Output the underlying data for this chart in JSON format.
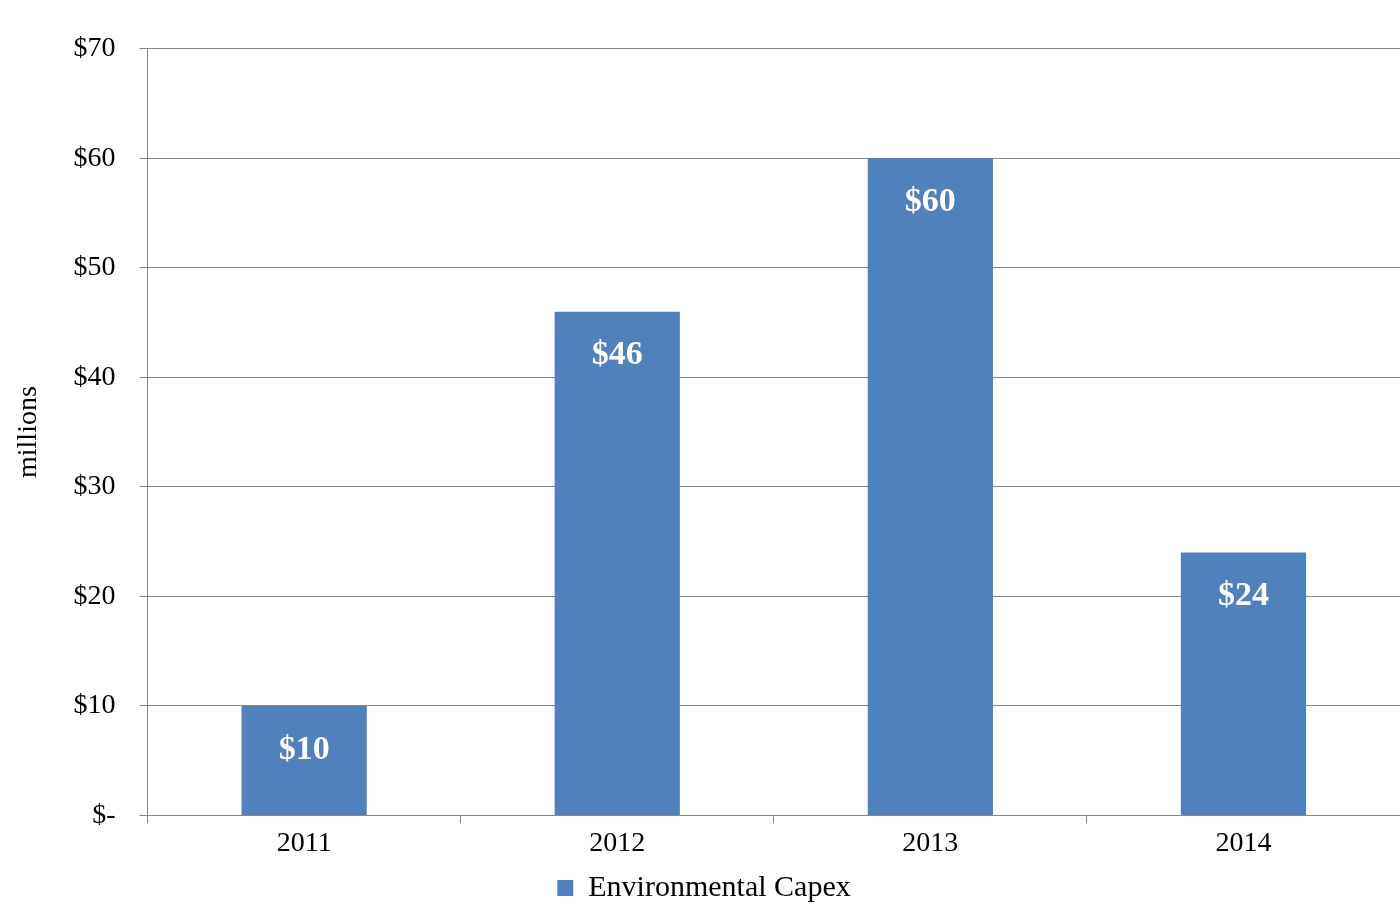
{
  "chart_data": {
    "type": "bar",
    "ylabel": "millions",
    "categories": [
      "2011",
      "2012",
      "2013",
      "2014"
    ],
    "series": [
      {
        "name": "Environmental Capex",
        "color": "#4f81bd",
        "values": [
          10,
          46,
          60,
          24
        ],
        "value_labels": [
          "$10",
          "$46",
          "$60",
          "$24"
        ]
      }
    ],
    "ylim": [
      0,
      70
    ],
    "yticks": [
      {
        "value": 0,
        "label": "$-"
      },
      {
        "value": 10,
        "label": "$10"
      },
      {
        "value": 20,
        "label": "$20"
      },
      {
        "value": 30,
        "label": "$30"
      },
      {
        "value": 40,
        "label": "$40"
      },
      {
        "value": 50,
        "label": "$50"
      },
      {
        "value": 60,
        "label": "$60"
      },
      {
        "value": 70,
        "label": "$70"
      }
    ],
    "grid": "y",
    "legend": "bottom"
  }
}
